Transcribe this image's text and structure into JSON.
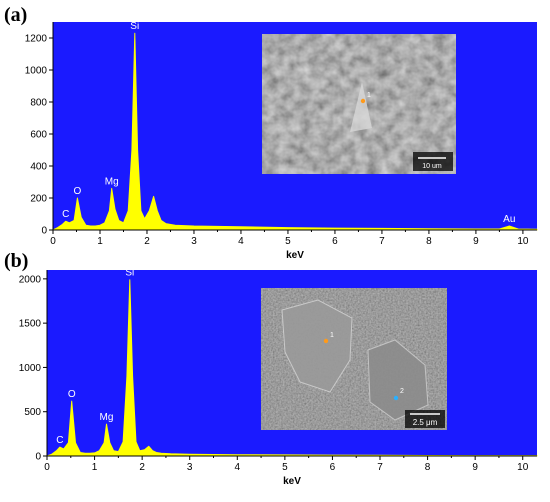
{
  "panels": [
    {
      "label": "(a)"
    },
    {
      "label": "(b)"
    }
  ],
  "colors": {
    "background": "#1a1aff",
    "spectrum": "#ffff00",
    "peak_label": "#ffffff"
  },
  "chart_data": [
    {
      "type": "line",
      "xlabel": "keV",
      "ylabel": "",
      "xlim": [
        0,
        10.3
      ],
      "ylim": [
        0,
        1300
      ],
      "xticks": [
        "0",
        "1",
        "2",
        "3",
        "4",
        "5",
        "6",
        "7",
        "8",
        "9",
        "10"
      ],
      "yticks": [
        0,
        200,
        400,
        600,
        800,
        1000,
        1200
      ],
      "grid": false,
      "x": [
        0,
        0.1,
        0.2,
        0.27,
        0.35,
        0.45,
        0.52,
        0.6,
        0.7,
        0.8,
        0.9,
        1.0,
        1.1,
        1.2,
        1.25,
        1.32,
        1.4,
        1.5,
        1.6,
        1.68,
        1.74,
        1.8,
        1.87,
        1.95,
        2.05,
        2.14,
        2.22,
        2.3,
        2.4,
        2.6,
        3.0,
        4.0,
        5.0,
        6.0,
        7.0,
        8.0,
        9.0,
        9.5,
        9.71,
        9.9,
        10.3
      ],
      "y": [
        0,
        15,
        35,
        55,
        45,
        60,
        200,
        80,
        30,
        25,
        25,
        30,
        45,
        120,
        260,
        130,
        60,
        45,
        120,
        500,
        1230,
        500,
        120,
        70,
        120,
        210,
        120,
        60,
        40,
        30,
        25,
        20,
        15,
        12,
        10,
        8,
        6,
        6,
        25,
        6,
        5
      ],
      "annotations": [
        {
          "text": "C",
          "x": 0.27,
          "y": 55
        },
        {
          "text": "O",
          "x": 0.52,
          "y": 200
        },
        {
          "text": "Mg",
          "x": 1.25,
          "y": 260
        },
        {
          "text": "Si",
          "x": 1.74,
          "y": 1230
        },
        {
          "text": "Au",
          "x": 9.71,
          "y": 25
        }
      ],
      "inset": {
        "type": "SEM micrograph",
        "markers": [
          "1"
        ],
        "scale_bar": "10 um"
      }
    },
    {
      "type": "line",
      "xlabel": "keV",
      "ylabel": "",
      "xlim": [
        0,
        10.3
      ],
      "ylim": [
        0,
        2100
      ],
      "xticks": [
        "0",
        "1",
        "2",
        "3",
        "4",
        "5",
        "6",
        "7",
        "8",
        "9",
        "10"
      ],
      "yticks": [
        0,
        500,
        1000,
        1500,
        2000
      ],
      "grid": false,
      "x": [
        0,
        0.1,
        0.2,
        0.27,
        0.35,
        0.45,
        0.52,
        0.6,
        0.7,
        0.8,
        0.9,
        1.0,
        1.1,
        1.2,
        1.25,
        1.32,
        1.4,
        1.5,
        1.6,
        1.68,
        1.74,
        1.8,
        1.87,
        1.95,
        2.05,
        2.14,
        2.22,
        2.3,
        2.4,
        2.6,
        3.0,
        4.0,
        5.0,
        6.0,
        7.0,
        8.0,
        9.0,
        10.3
      ],
      "y": [
        0,
        20,
        60,
        100,
        80,
        150,
        620,
        150,
        40,
        30,
        30,
        35,
        60,
        150,
        360,
        150,
        60,
        50,
        160,
        900,
        1990,
        900,
        160,
        60,
        70,
        110,
        60,
        40,
        30,
        25,
        20,
        15,
        12,
        10,
        8,
        6,
        5,
        5
      ],
      "annotations": [
        {
          "text": "C",
          "x": 0.27,
          "y": 100
        },
        {
          "text": "O",
          "x": 0.52,
          "y": 620
        },
        {
          "text": "Mg",
          "x": 1.25,
          "y": 360
        },
        {
          "text": "Si",
          "x": 1.74,
          "y": 1990
        }
      ],
      "inset": {
        "type": "SEM micrograph",
        "markers": [
          "1",
          "2"
        ],
        "scale_bar": "2.5 μm"
      }
    }
  ]
}
